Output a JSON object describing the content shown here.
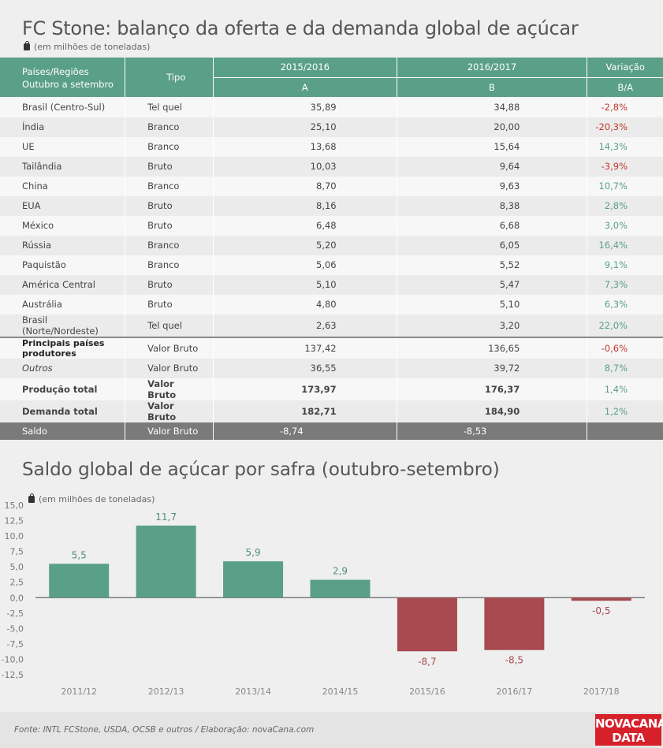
{
  "title": "FC Stone: balanço da oferta e da demanda global de açúcar",
  "unit": "(em milhões de toneladas)",
  "table": {
    "headers": {
      "country_line1": "Países/Regiões",
      "country_line2": "Outubro a setembro",
      "tipo": "Tipo",
      "col_a": "2015/2016",
      "col_a_sub": "A",
      "col_b": "2016/2017",
      "col_b_sub": "B",
      "var": "Variação",
      "var_sub": "B/A"
    },
    "rows": [
      {
        "country": "Brasil (Centro-Sul)",
        "tipo": "Tel quel",
        "a": "35,89",
        "b": "34,88",
        "var": "-2,8%",
        "sign": "neg"
      },
      {
        "country": "Índia",
        "tipo": "Branco",
        "a": "25,10",
        "b": "20,00",
        "var": "-20,3%",
        "sign": "neg"
      },
      {
        "country": "UE",
        "tipo": "Branco",
        "a": "13,68",
        "b": "15,64",
        "var": "14,3%",
        "sign": "pos"
      },
      {
        "country": "Tailândia",
        "tipo": "Bruto",
        "a": "10,03",
        "b": "9,64",
        "var": "-3,9%",
        "sign": "neg"
      },
      {
        "country": "China",
        "tipo": "Branco",
        "a": "8,70",
        "b": "9,63",
        "var": "10,7%",
        "sign": "pos"
      },
      {
        "country": "EUA",
        "tipo": "Bruto",
        "a": "8,16",
        "b": "8,38",
        "var": "2,8%",
        "sign": "pos"
      },
      {
        "country": "México",
        "tipo": "Bruto",
        "a": "6,48",
        "b": "6,68",
        "var": "3,0%",
        "sign": "pos"
      },
      {
        "country": "Rússia",
        "tipo": "Branco",
        "a": "5,20",
        "b": "6,05",
        "var": "16,4%",
        "sign": "pos"
      },
      {
        "country": "Paquistão",
        "tipo": "Branco",
        "a": "5,06",
        "b": "5,52",
        "var": "9,1%",
        "sign": "pos"
      },
      {
        "country": "América Central",
        "tipo": "Bruto",
        "a": "5,10",
        "b": "5,47",
        "var": "7,3%",
        "sign": "pos"
      },
      {
        "country": "Austrália",
        "tipo": "Bruto",
        "a": "4,80",
        "b": "5,10",
        "var": "6,3%",
        "sign": "pos"
      },
      {
        "country": "Brasil (Norte/Nordeste)",
        "tipo": "Tel quel",
        "a": "2,63",
        "b": "3,20",
        "var": "22,0%",
        "sign": "pos"
      }
    ],
    "principais": {
      "country": "Principais países produtores",
      "tipo": "Valor Bruto",
      "a": "137,42",
      "b": "136,65",
      "var": "-0,6%"
    },
    "outros": {
      "country": "Outros",
      "tipo": "Valor Bruto",
      "a": "36,55",
      "b": "39,72",
      "var": "8,7%"
    },
    "producao": {
      "country": "Produção total",
      "tipo": "Valor Bruto",
      "a": "173,97",
      "b": "176,37",
      "var": "1,4%"
    },
    "demanda": {
      "country": "Demanda total",
      "tipo": "Valor Bruto",
      "a": "182,71",
      "b": "184,90",
      "var": "1,2%"
    },
    "saldo": {
      "country": "Saldo",
      "tipo": "Valor Bruto",
      "a": "-8,74",
      "b": "-8,53",
      "var": ""
    }
  },
  "chart_title": "Saldo global de açúcar por safra (outubro-setembro)",
  "chart_unit": "(em milhões de toneladas)",
  "chart_data": {
    "type": "bar",
    "categories": [
      "2011/12",
      "2012/13",
      "2013/14",
      "2014/15",
      "2015/16",
      "2016/17",
      "2017/18"
    ],
    "values": [
      5.5,
      11.7,
      5.9,
      2.9,
      -8.7,
      -8.5,
      -0.5
    ],
    "labels": [
      "5,5",
      "11,7",
      "5,9",
      "2,9",
      "-8,7",
      "-8,5",
      "-0,5"
    ],
    "yticks": [
      "15,0",
      "12,5",
      "10,0",
      "7,5",
      "5,0",
      "2,5",
      "0,0",
      "-2,5",
      "-5,0",
      "-7,5",
      "-10,0",
      "-12,5"
    ],
    "ylim": [
      -12.5,
      15
    ],
    "colors": {
      "positive": "#5a9f87",
      "negative": "#a84a4f"
    },
    "title": "Saldo global de açúcar por safra (outubro-setembro)",
    "ylabel": "(em milhões de toneladas)",
    "grid": false
  },
  "footer": "Fonte: INTL FCStone, USDA, OCSB e outros / Elaboração: novaCana.com",
  "logo": {
    "line1": "NOVACANA",
    "line2": "DATA"
  }
}
